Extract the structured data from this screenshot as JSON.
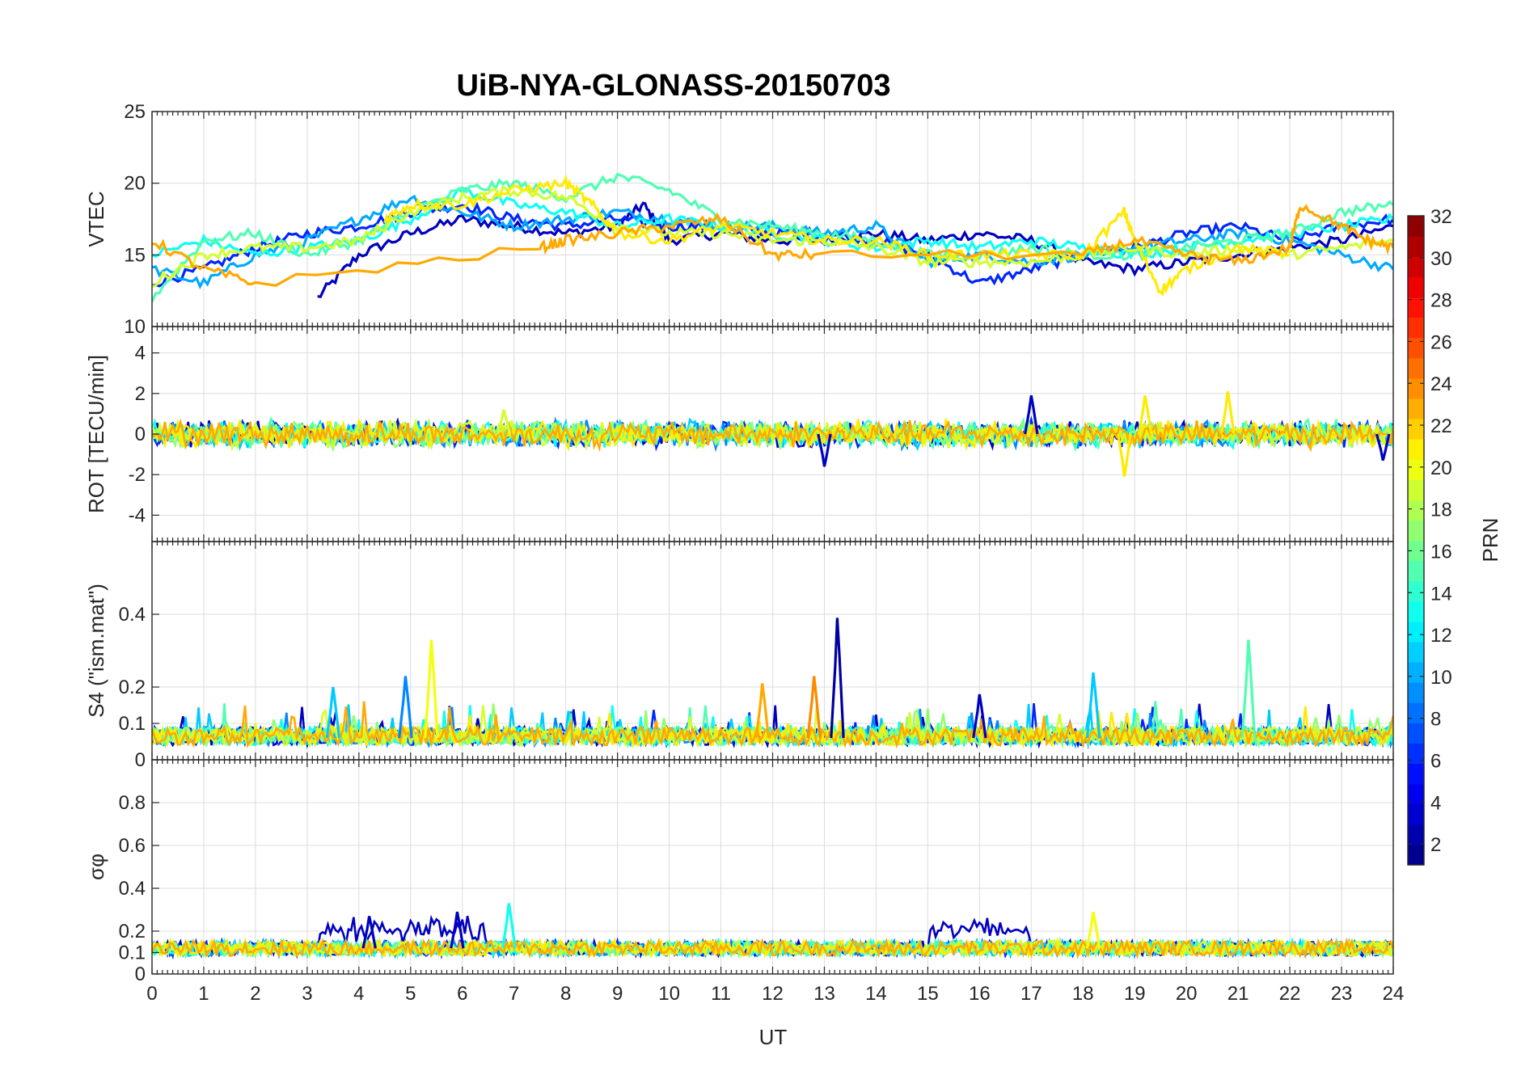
{
  "chart_data": {
    "type": "line",
    "title": "UiB-NYA-GLONASS-20150703",
    "xlabel": "UT",
    "x_range": [
      0,
      24
    ],
    "x_ticks": [
      "0",
      "1",
      "2",
      "3",
      "4",
      "5",
      "6",
      "7",
      "8",
      "9",
      "10",
      "11",
      "12",
      "13",
      "14",
      "15",
      "16",
      "17",
      "18",
      "19",
      "20",
      "21",
      "22",
      "23",
      "24"
    ],
    "grid": true,
    "colorbar": {
      "label": "PRN",
      "range": [
        1,
        32
      ],
      "ticks": [
        "2",
        "4",
        "6",
        "8",
        "10",
        "12",
        "14",
        "16",
        "18",
        "20",
        "22",
        "24",
        "26",
        "28",
        "30",
        "32"
      ],
      "colormap": "jet"
    },
    "panels": [
      {
        "id": "vtec",
        "ylabel": "VTEC",
        "ylim": [
          10,
          25
        ],
        "yticks": [
          "10",
          "15",
          "20",
          "25"
        ],
        "series": [
          {
            "prn": 3,
            "x": [
              3.2,
              4,
              5,
              6,
              7,
              8,
              9,
              9.5,
              10,
              11,
              12,
              13,
              14,
              15,
              16,
              17,
              18,
              19,
              20,
              21,
              22,
              23,
              24
            ],
            "y": [
              12,
              15,
              16.5,
              17.5,
              17,
              16.5,
              17,
              18.5,
              16,
              16.5,
              16,
              16,
              16.5,
              16,
              16.5,
              16,
              14.5,
              14,
              14.5,
              15,
              15.5,
              16,
              17
            ]
          },
          {
            "prn": 6,
            "x": [
              0,
              1,
              2,
              3,
              4,
              5,
              6,
              7,
              8,
              9,
              10,
              11,
              12,
              13,
              14,
              15,
              16,
              17,
              18,
              19,
              20,
              21,
              22,
              23,
              24
            ],
            "y": [
              13,
              14,
              15.5,
              16.5,
              17,
              18,
              18.5,
              17.5,
              17,
              17.5,
              17,
              17,
              16.5,
              16.5,
              16,
              15,
              13,
              14,
              15,
              15.5,
              16.5,
              17,
              16,
              17,
              17.5
            ]
          },
          {
            "prn": 10,
            "x": [
              0,
              1,
              2,
              3,
              4,
              5,
              6,
              7,
              8,
              9,
              10,
              11,
              12,
              13,
              14,
              15,
              16,
              17,
              18,
              19,
              20,
              21,
              22,
              23,
              24
            ],
            "y": [
              14,
              13,
              15,
              16,
              17.5,
              19,
              18,
              17,
              17.5,
              18,
              17.5,
              17,
              17,
              16.5,
              17,
              14.5,
              15,
              14.5,
              15,
              15.5,
              16,
              16.5,
              16,
              15,
              14
            ]
          },
          {
            "prn": 13,
            "x": [
              0,
              1,
              2,
              3,
              4,
              5,
              6,
              7,
              8,
              9,
              10,
              11,
              12,
              13,
              14,
              15,
              16,
              17,
              18,
              19,
              20,
              21,
              22,
              23,
              24
            ],
            "y": [
              15,
              16,
              15,
              15.5,
              16,
              17.5,
              19.5,
              18.5,
              18,
              17,
              17.5,
              17,
              16.5,
              16,
              15.5,
              16,
              15.5,
              16,
              15.5,
              15,
              15.5,
              16,
              16.5,
              17,
              17.5
            ]
          },
          {
            "prn": 15,
            "x": [
              0,
              1,
              2,
              3,
              4,
              5,
              6,
              7,
              8,
              9,
              10,
              11,
              12,
              13,
              14,
              15,
              16,
              17,
              18,
              19,
              20,
              21,
              22,
              23,
              24
            ],
            "y": [
              12,
              16,
              16.5,
              15,
              16,
              18,
              19.5,
              20,
              19,
              20.5,
              19.5,
              17.5,
              17,
              16.5,
              16,
              15,
              15,
              15.5,
              15,
              15,
              15.5,
              16,
              16.5,
              18,
              18.5
            ]
          },
          {
            "prn": 19,
            "x": [
              0,
              1,
              2,
              3,
              4,
              5,
              6,
              7,
              8,
              9,
              10,
              11,
              12,
              13,
              14,
              15,
              16,
              17,
              18,
              19,
              20,
              21,
              22,
              23,
              24
            ],
            "y": [
              13,
              15,
              15.5,
              15.5,
              16,
              18,
              19,
              19.5,
              19,
              17,
              16.5,
              16.5,
              16,
              16,
              15.5,
              14.5,
              14.5,
              14.5,
              15,
              15.5,
              15,
              15.5,
              15,
              15.5,
              16
            ]
          },
          {
            "prn": 21,
            "x": [
              4.5,
              5,
              6,
              7,
              8,
              8.5,
              9,
              10,
              11,
              12,
              13,
              14,
              15,
              16,
              17,
              18,
              18.8,
              19,
              19.5,
              20,
              21,
              22
            ],
            "y": [
              17.5,
              18.5,
              18.5,
              19.5,
              20,
              18.5,
              16.5,
              16,
              17,
              16.5,
              16,
              16,
              15,
              15,
              15,
              15,
              18,
              16,
              12.5,
              14,
              15.5,
              15
            ]
          },
          {
            "prn": 23,
            "x": [
              0,
              1,
              2,
              7.5,
              8,
              9,
              10,
              11,
              12,
              12.8,
              18,
              19,
              20,
              21,
              22,
              22.2,
              23,
              23.5,
              24
            ],
            "y": [
              16,
              14,
              13,
              15.5,
              16,
              16.5,
              17,
              17.5,
              15,
              15,
              15,
              16,
              15,
              14.5,
              15.5,
              18.5,
              17,
              16,
              15.5
            ]
          }
        ]
      },
      {
        "id": "rot",
        "ylabel": "ROT [TECU/min]",
        "ylim": [
          -5.3,
          5.3
        ],
        "yticks": [
          "-4",
          "-2",
          "0",
          "2",
          "4"
        ],
        "noise_amplitude": 0.5,
        "spikes": [
          {
            "x": 13,
            "y": -1.6,
            "prn": 3
          },
          {
            "x": 17,
            "y": 1.9,
            "prn": 3
          },
          {
            "x": 18.8,
            "y": -2.1,
            "prn": 21
          },
          {
            "x": 19.2,
            "y": 1.9,
            "prn": 21
          },
          {
            "x": 20.8,
            "y": 2.1,
            "prn": 21
          },
          {
            "x": 23.8,
            "y": -1.3,
            "prn": 3
          },
          {
            "x": 6.8,
            "y": 1.2,
            "prn": 19
          }
        ]
      },
      {
        "id": "s4",
        "ylabel": "S4 (\"ism.mat\")",
        "ylim": [
          0,
          0.6
        ],
        "yticks": [
          "0",
          "0.1",
          "0.2",
          "0.4"
        ],
        "baseline": 0.06,
        "peaks": [
          {
            "x": 13.25,
            "y": 0.39,
            "prn": 2
          },
          {
            "x": 5.4,
            "y": 0.33,
            "prn": 20
          },
          {
            "x": 21.2,
            "y": 0.33,
            "prn": 15
          },
          {
            "x": 4.9,
            "y": 0.23,
            "prn": 9
          },
          {
            "x": 12.8,
            "y": 0.23,
            "prn": 24
          },
          {
            "x": 11.8,
            "y": 0.21,
            "prn": 23
          },
          {
            "x": 3.5,
            "y": 0.2,
            "prn": 11
          },
          {
            "x": 18.2,
            "y": 0.24,
            "prn": 11
          },
          {
            "x": 16,
            "y": 0.18,
            "prn": 3
          }
        ]
      },
      {
        "id": "sigphi",
        "ylabel": "σφ",
        "ylim": [
          0,
          1
        ],
        "yticks": [
          "0",
          "0.1",
          "0.2",
          "0.4",
          "0.6",
          "0.8"
        ],
        "baseline": 0.12,
        "peaks": [
          {
            "x": 6.9,
            "y": 0.33,
            "prn": 13
          },
          {
            "x": 5.9,
            "y": 0.29,
            "prn": 3
          },
          {
            "x": 18.2,
            "y": 0.29,
            "prn": 20
          },
          {
            "x": 4.2,
            "y": 0.27,
            "prn": 3
          }
        ]
      }
    ]
  }
}
